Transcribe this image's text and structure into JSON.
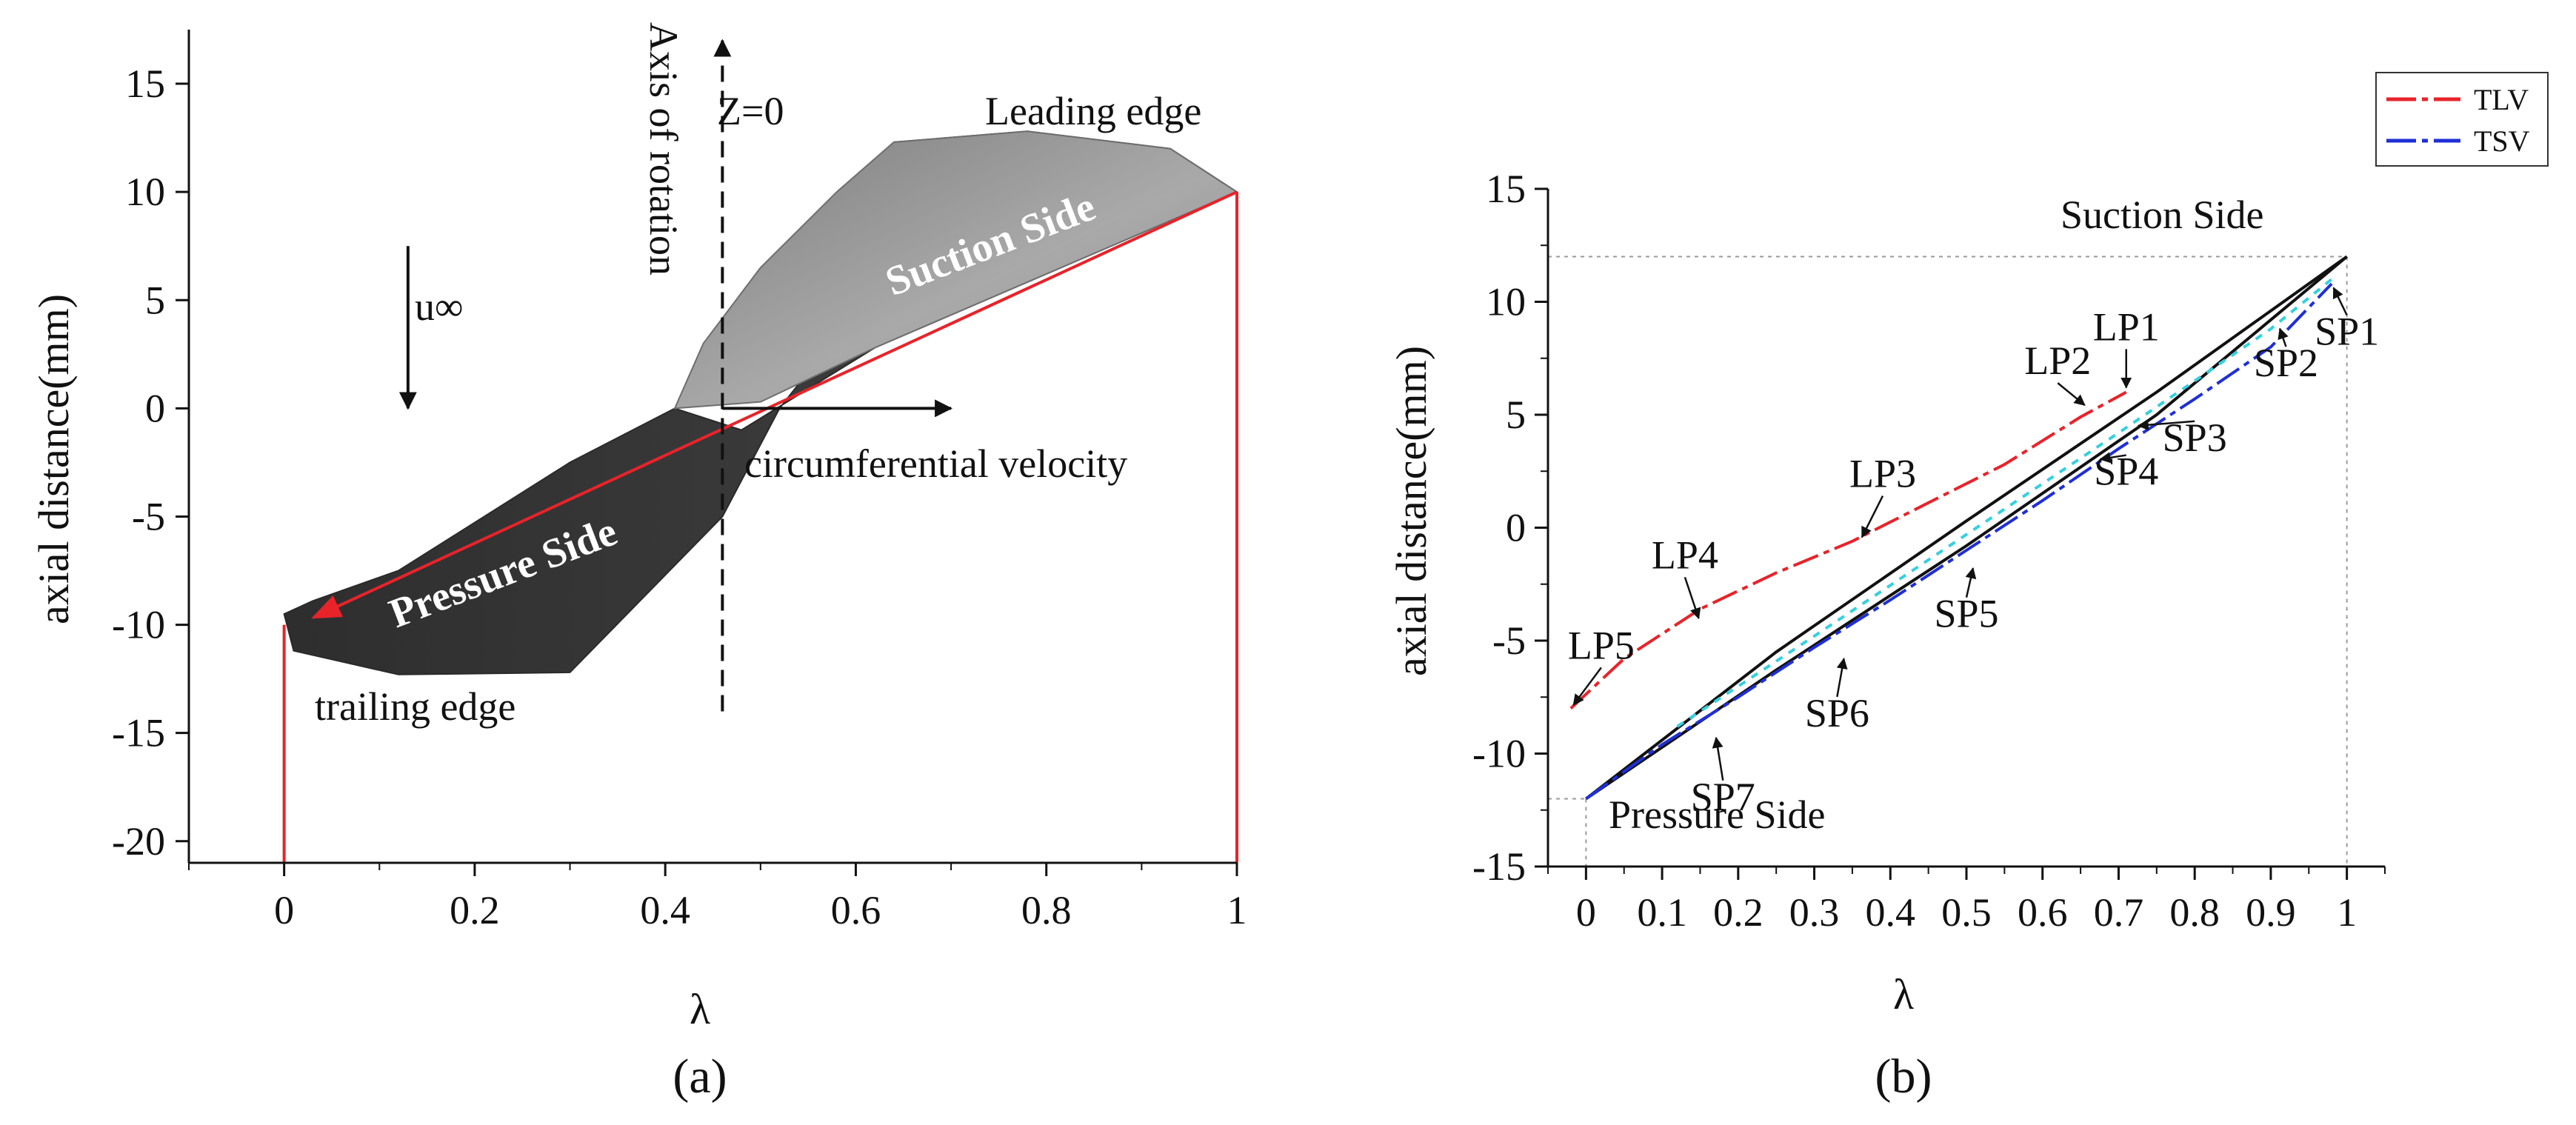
{
  "chart_data": [
    {
      "panel": "(a)",
      "type": "diagram",
      "xlabel": "λ",
      "ylabel": "axial distance(mm)",
      "xlim": [
        -0.1,
        1.0
      ],
      "ylim": [
        -21,
        17.5
      ],
      "xticks": [
        "0",
        "0.2",
        "0.4",
        "0.6",
        "0.8",
        "1"
      ],
      "yticks": [
        "15",
        "10",
        "5",
        "0",
        "-5",
        "-10",
        "-15",
        "-20"
      ],
      "annotations": {
        "axis_of_rotation": "Axis of rotation",
        "z_zero": "Z=0",
        "leading_edge": "Leading edge",
        "suction_side": "Suction Side",
        "pressure_side": "Pressure Side",
        "trailing_edge": "trailing edge",
        "circumferential_velocity": "circumferential velocity",
        "free_stream": "u∞"
      },
      "chord_line": {
        "from": [
          0,
          -10
        ],
        "to": [
          1,
          10
        ]
      },
      "edge_lines": [
        {
          "x": 0,
          "y_from": -21,
          "y_to": -10
        },
        {
          "x": 1,
          "y_from": -21,
          "y_to": 10
        }
      ],
      "rotation_axis": {
        "x": 0.46,
        "y_from": -14,
        "y_to": 17
      },
      "velocity_arrow": {
        "x_from": 0.46,
        "x_to": 0.7,
        "y": 0
      },
      "free_stream_arrow": {
        "x": 0.13,
        "y_from": 7.5,
        "y_to": 0
      },
      "blade_outline": [
        [
          0,
          -9.5
        ],
        [
          0.01,
          -11.2
        ],
        [
          0.12,
          -12.3
        ],
        [
          0.3,
          -12.2
        ],
        [
          0.46,
          -5
        ],
        [
          0.52,
          0
        ],
        [
          0.6,
          4.5
        ],
        [
          0.64,
          12.3
        ],
        [
          0.78,
          12.8
        ],
        [
          0.93,
          12
        ],
        [
          1,
          10
        ],
        [
          0.62,
          2.8
        ],
        [
          0.48,
          -1
        ],
        [
          0.41,
          0
        ],
        [
          0.3,
          -2.5
        ],
        [
          0.12,
          -7.5
        ],
        [
          0.03,
          -8.9
        ]
      ],
      "suction_face": [
        [
          0.41,
          0
        ],
        [
          0.44,
          3
        ],
        [
          0.5,
          6.5
        ],
        [
          0.58,
          10
        ],
        [
          0.64,
          12.3
        ],
        [
          0.78,
          12.8
        ],
        [
          0.93,
          12
        ],
        [
          1,
          10
        ],
        [
          0.62,
          2.8
        ],
        [
          0.5,
          0.3
        ]
      ]
    },
    {
      "panel": "(b)",
      "type": "line",
      "xlabel": "λ",
      "ylabel": "axial distance(mm)",
      "xlim": [
        -0.05,
        1.05
      ],
      "ylim": [
        -15,
        15
      ],
      "xticks": [
        "0",
        "0.1",
        "0.2",
        "0.3",
        "0.4",
        "0.5",
        "0.6",
        "0.7",
        "0.8",
        "0.9",
        "1"
      ],
      "yticks": [
        "15",
        "10",
        "5",
        "0",
        "-5",
        "-10",
        "-15"
      ],
      "legend": {
        "position": "top-right",
        "entries": [
          "TLV",
          "TSV"
        ]
      },
      "colors": {
        "TLV": "#e8232a",
        "TSV": "#1f2fd6",
        "blade": "#111111",
        "cyan": "#35d0e0"
      },
      "blade_upper": [
        [
          0,
          -12
        ],
        [
          0.25,
          -5.5
        ],
        [
          0.5,
          0.3
        ],
        [
          0.75,
          6
        ],
        [
          1,
          12
        ]
      ],
      "blade_lower": [
        [
          0,
          -12
        ],
        [
          0.25,
          -6.3
        ],
        [
          0.5,
          -0.8
        ],
        [
          0.75,
          5
        ],
        [
          1,
          12
        ]
      ],
      "series": [
        {
          "name": "TLV",
          "x": [
            -0.02,
            0.05,
            0.15,
            0.25,
            0.35,
            0.45,
            0.55,
            0.65,
            0.71
          ],
          "y": [
            -8.0,
            -5.8,
            -3.6,
            -2.0,
            -0.6,
            1.1,
            2.8,
            4.9,
            6.0
          ]
        },
        {
          "name": "TSV",
          "x": [
            0.0,
            0.1,
            0.2,
            0.3,
            0.4,
            0.5,
            0.6,
            0.7,
            0.8,
            0.9,
            0.98
          ],
          "y": [
            -12.0,
            -9.6,
            -7.5,
            -5.3,
            -3.2,
            -1.0,
            1.2,
            3.5,
            5.7,
            8.0,
            10.8
          ]
        },
        {
          "name": "cyan",
          "x": [
            0.12,
            0.3,
            0.5,
            0.7,
            0.9,
            0.98
          ],
          "y": [
            -8.8,
            -4.8,
            -0.3,
            4.2,
            8.8,
            11.0
          ]
        }
      ],
      "points": [
        {
          "label": "LP1",
          "x": 0.71,
          "y": 6.0,
          "lx": 0.71,
          "ly": 8.3
        },
        {
          "label": "LP2",
          "x": 0.66,
          "y": 5.3,
          "lx": 0.62,
          "ly": 6.8
        },
        {
          "label": "LP3",
          "x": 0.36,
          "y": -0.6,
          "lx": 0.39,
          "ly": 1.8
        },
        {
          "label": "LP4",
          "x": 0.15,
          "y": -4.2,
          "lx": 0.13,
          "ly": -1.8
        },
        {
          "label": "LP5",
          "x": -0.02,
          "y": -8.0,
          "lx": 0.02,
          "ly": -5.8
        },
        {
          "label": "SP1",
          "x": 0.98,
          "y": 10.8,
          "lx": 1.0,
          "ly": 8.1
        },
        {
          "label": "SP2",
          "x": 0.91,
          "y": 9.0,
          "lx": 0.92,
          "ly": 6.7
        },
        {
          "label": "SP3",
          "x": 0.72,
          "y": 4.5,
          "lx": 0.8,
          "ly": 3.4
        },
        {
          "label": "SP4",
          "x": 0.67,
          "y": 3.0,
          "lx": 0.71,
          "ly": 1.9
        },
        {
          "label": "SP5",
          "x": 0.51,
          "y": -1.6,
          "lx": 0.5,
          "ly": -4.4
        },
        {
          "label": "SP6",
          "x": 0.34,
          "y": -5.6,
          "lx": 0.33,
          "ly": -8.8
        },
        {
          "label": "SP7",
          "x": 0.17,
          "y": -9.1,
          "lx": 0.18,
          "ly": -12.5
        }
      ],
      "annotations": {
        "suction_side": "Suction Side",
        "pressure_side": "Pressure Side"
      },
      "reference_lines": {
        "suction_side": {
          "x": 1,
          "y": 12
        },
        "pressure_side": {
          "x": 0,
          "y": -12
        }
      }
    }
  ],
  "panel_labels": {
    "a": "(a)",
    "b": "(b)"
  }
}
